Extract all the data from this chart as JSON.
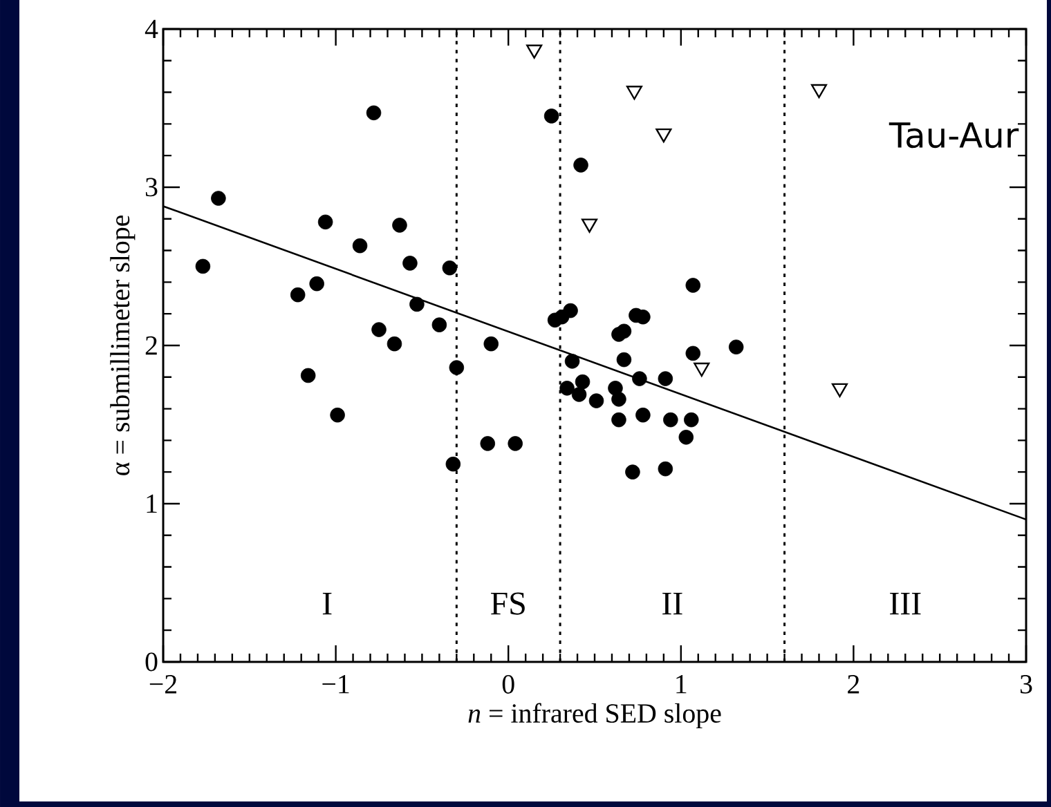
{
  "chart_data": {
    "type": "scatter",
    "xlabel": "*n* = infrared SED slope",
    "ylabel": "α = submillimeter slope",
    "xlim": [
      -2,
      3
    ],
    "ylim": [
      0,
      4
    ],
    "xticks": [
      {
        "value": -2,
        "label": "−2"
      },
      {
        "value": -1,
        "label": "−1"
      },
      0,
      1,
      2,
      3
    ],
    "yticks": [
      0,
      1,
      2,
      3,
      4
    ],
    "grid": false,
    "ref_lines": [
      {
        "axis": "x",
        "value": -0.3,
        "line_style": "dotted",
        "color": "#000000"
      },
      {
        "axis": "x",
        "value": 0.3,
        "line_style": "dotted",
        "color": "#000000"
      },
      {
        "axis": "x",
        "value": 1.6,
        "line_style": "dotted",
        "color": "#000000"
      }
    ],
    "annotations": [
      "I",
      "FS",
      "II",
      "III",
      "Tau-Aur"
    ],
    "series": [
      {
        "color": "#000000",
        "marker": "circle",
        "x": [
          -1.77,
          -1.68,
          -1.22,
          -1.11,
          -1.06,
          -1.16,
          -0.99,
          -0.86,
          -0.78,
          -0.75,
          -0.66,
          -0.63,
          -0.57,
          -0.53,
          -0.4,
          -0.34,
          -0.3,
          -0.1,
          -0.32,
          -0.12,
          0.04,
          0.25,
          0.42,
          0.27,
          0.31,
          0.36,
          0.74,
          0.78,
          0.64,
          0.67,
          0.67,
          0.37,
          1.07,
          1.32,
          1.07,
          0.76,
          0.91,
          0.34,
          0.43,
          0.41,
          0.51,
          0.62,
          0.64,
          0.64,
          0.78,
          0.94,
          1.06,
          1.03,
          0.72,
          0.91
        ],
        "values": [
          2.5,
          2.93,
          2.32,
          2.39,
          2.78,
          1.81,
          1.56,
          2.63,
          3.47,
          2.1,
          2.01,
          2.76,
          2.52,
          2.26,
          2.13,
          2.49,
          1.86,
          2.01,
          1.25,
          1.38,
          1.38,
          3.45,
          3.14,
          2.16,
          2.18,
          2.22,
          2.19,
          2.18,
          2.07,
          2.09,
          1.91,
          1.9,
          2.38,
          1.99,
          1.95,
          1.79,
          1.79,
          1.73,
          1.77,
          1.69,
          1.65,
          1.73,
          1.66,
          1.53,
          1.56,
          1.53,
          1.53,
          1.42,
          1.2,
          1.22
        ]
      },
      {
        "color": "#000000",
        "marker": "triangle",
        "x": [
          0.15,
          0.73,
          0.9,
          0.47,
          1.8,
          1.12,
          1.92
        ],
        "values": [
          3.87,
          3.61,
          3.34,
          2.77,
          3.62,
          1.86,
          1.73
        ]
      },
      {
        "type": "line",
        "color": "#000000",
        "marker": "none",
        "line_style": "solid",
        "x": [
          -2,
          3
        ],
        "values": [
          2.88,
          0.9
        ]
      }
    ]
  }
}
